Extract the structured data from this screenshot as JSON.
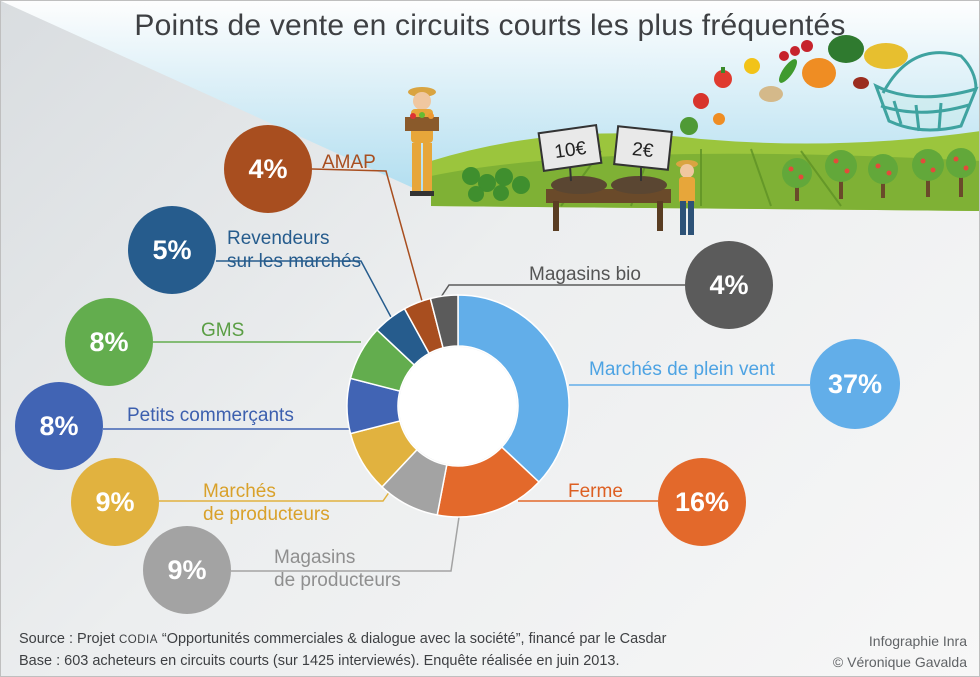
{
  "chart_data": {
    "type": "pie",
    "title": "Points de vente en circuits courts les plus fréquentés",
    "slices": [
      {
        "label": "Marchés de plein vent",
        "value": 37,
        "display": "37%",
        "color": "#62aee9"
      },
      {
        "label": "Ferme",
        "value": 16,
        "display": "16%",
        "color": "#e3692b"
      },
      {
        "label": "Magasins de producteurs",
        "value": 9,
        "display": "9%",
        "color": "#a3a3a3"
      },
      {
        "label": "Marchés de producteurs",
        "value": 9,
        "display": "9%",
        "color": "#e1b23f"
      },
      {
        "label": "Petits commerçants",
        "value": 8,
        "display": "8%",
        "color": "#4164b4"
      },
      {
        "label": "GMS",
        "value": 8,
        "display": "8%",
        "color": "#63ad4e"
      },
      {
        "label": "Revendeurs sur les marchés",
        "value": 5,
        "display": "5%",
        "color": "#265c8d"
      },
      {
        "label": "AMAP",
        "value": 4,
        "display": "4%",
        "color": "#a84e1f"
      },
      {
        "label": "Magasins bio",
        "value": 4,
        "display": "4%",
        "color": "#5b5b5b"
      }
    ]
  },
  "labels": {
    "amap": "AMAP",
    "revendeurs_1": "Revendeurs",
    "revendeurs_2": "sur les marchés",
    "gms": "GMS",
    "petits": "Petits commerçants",
    "marches_prod_1": "Marchés",
    "marches_prod_2": "de producteurs",
    "magasins_prod_1": "Magasins",
    "magasins_prod_2": "de producteurs",
    "magasins_bio": "Magasins bio",
    "plein_vent": "Marchés de plein vent",
    "ferme": "Ferme"
  },
  "signs": {
    "price1": "10€",
    "price2": "2€"
  },
  "footer": {
    "line1_pre": "Source : Projet ",
    "line1_sc": "CODIA",
    "line1_post": " “Opportunités commerciales & dialogue avec la société”, financé par le Casdar",
    "line2": "Base : 603 acheteurs en circuits courts (sur 1425 interviewés). Enquête réalisée en juin 2013.",
    "credit1": "Infographie Inra",
    "credit2": "© Véronique Gavalda"
  },
  "icons": [
    "farmer-icon",
    "market-stall-icon",
    "vegetables-icon",
    "basket-icon",
    "field-icon",
    "trees-icon"
  ]
}
